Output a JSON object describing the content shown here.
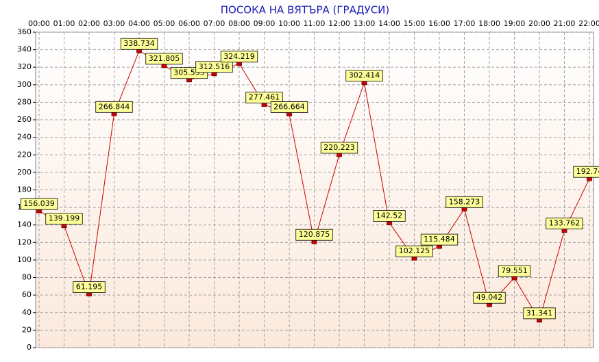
{
  "chart_data": {
    "type": "line",
    "title": "ПОСОКА НА ВЯТЪРА    (ГРАДУСИ)",
    "categories": [
      "00:00",
      "01:00",
      "02:00",
      "03:00",
      "04:00",
      "05:00",
      "06:00",
      "07:00",
      "08:00",
      "09:00",
      "10:00",
      "11:00",
      "12:00",
      "13:00",
      "14:00",
      "15:00",
      "16:00",
      "17:00",
      "18:00",
      "19:00",
      "20:00",
      "21:00",
      "22:00"
    ],
    "values": [
      156.039,
      139.199,
      61.195,
      266.844,
      338.734,
      321.805,
      305.555,
      312.516,
      324.219,
      277.461,
      266.664,
      120.875,
      220.223,
      302.414,
      142.52,
      102.125,
      115.484,
      158.273,
      49.042,
      79.551,
      31.341,
      133.762,
      192.74
    ],
    "color": "#cc0000",
    "ylim": [
      0,
      360
    ],
    "yticks": [
      0,
      20,
      40,
      60,
      80,
      100,
      120,
      140,
      160,
      180,
      200,
      220,
      240,
      260,
      280,
      300,
      320,
      340,
      360
    ],
    "grid": true
  }
}
